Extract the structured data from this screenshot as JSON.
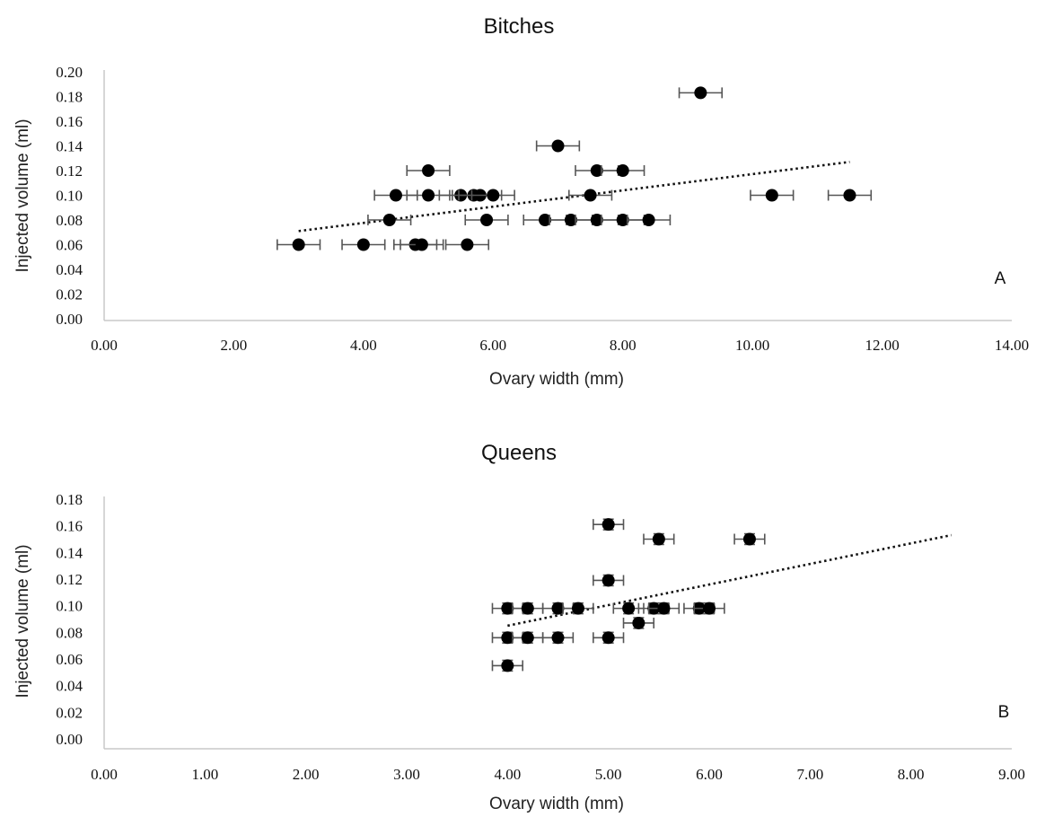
{
  "chart_data": [
    {
      "type": "scatter",
      "title": "Bitches",
      "xlabel": "Ovary width (mm)",
      "ylabel": "Injected volume (ml)",
      "panel_label": "A",
      "xlim": [
        0,
        14
      ],
      "ylim": [
        0,
        0.2
      ],
      "x_ticks": [
        "0.00",
        "2.00",
        "4.00",
        "6.00",
        "8.00",
        "10.00",
        "12.00",
        "14.00"
      ],
      "y_ticks": [
        "0.00",
        "0.02",
        "0.04",
        "0.06",
        "0.08",
        "0.10",
        "0.12",
        "0.14",
        "0.16",
        "0.18",
        "0.20"
      ],
      "x_tick_values": [
        0,
        2,
        4,
        6,
        8,
        10,
        12,
        14
      ],
      "y_tick_values": [
        0,
        0.02,
        0.04,
        0.06,
        0.08,
        0.1,
        0.12,
        0.14,
        0.16,
        0.18,
        0.2
      ],
      "grid": false,
      "error_bars": "horizontal",
      "x_error": 0.33,
      "trendline": {
        "style": "dotted",
        "from": [
          3.0,
          0.071
        ],
        "to": [
          11.5,
          0.127
        ]
      },
      "points": [
        {
          "x": 3.0,
          "y": 0.06
        },
        {
          "x": 4.0,
          "y": 0.06
        },
        {
          "x": 4.8,
          "y": 0.06
        },
        {
          "x": 4.9,
          "y": 0.06
        },
        {
          "x": 5.6,
          "y": 0.06
        },
        {
          "x": 4.4,
          "y": 0.08
        },
        {
          "x": 5.9,
          "y": 0.08
        },
        {
          "x": 6.8,
          "y": 0.08
        },
        {
          "x": 7.2,
          "y": 0.08
        },
        {
          "x": 7.6,
          "y": 0.08
        },
        {
          "x": 8.0,
          "y": 0.08
        },
        {
          "x": 8.4,
          "y": 0.08
        },
        {
          "x": 4.5,
          "y": 0.1
        },
        {
          "x": 5.0,
          "y": 0.1
        },
        {
          "x": 5.5,
          "y": 0.1
        },
        {
          "x": 5.7,
          "y": 0.1
        },
        {
          "x": 5.8,
          "y": 0.1
        },
        {
          "x": 6.0,
          "y": 0.1
        },
        {
          "x": 7.5,
          "y": 0.1
        },
        {
          "x": 10.3,
          "y": 0.1
        },
        {
          "x": 11.5,
          "y": 0.1
        },
        {
          "x": 5.0,
          "y": 0.12
        },
        {
          "x": 7.6,
          "y": 0.12
        },
        {
          "x": 8.0,
          "y": 0.12
        },
        {
          "x": 7.0,
          "y": 0.14
        },
        {
          "x": 9.2,
          "y": 0.183
        }
      ]
    },
    {
      "type": "scatter",
      "title": "Queens",
      "xlabel": "Ovary width (mm)",
      "ylabel": "Injected volume (ml)",
      "panel_label": "B",
      "xlim": [
        0,
        9
      ],
      "ylim": [
        0,
        0.18
      ],
      "x_ticks": [
        "0.00",
        "1.00",
        "2.00",
        "3.00",
        "4.00",
        "5.00",
        "6.00",
        "7.00",
        "8.00",
        "9.00"
      ],
      "y_ticks": [
        "0.00",
        "0.02",
        "0.04",
        "0.06",
        "0.08",
        "0.10",
        "0.12",
        "0.14",
        "0.16",
        "0.18"
      ],
      "x_tick_values": [
        0,
        1,
        2,
        3,
        4,
        5,
        6,
        7,
        8,
        9
      ],
      "y_tick_values": [
        0,
        0.02,
        0.04,
        0.06,
        0.08,
        0.1,
        0.12,
        0.14,
        0.16,
        0.18
      ],
      "grid": false,
      "error_bars": "both",
      "x_error": 0.15,
      "y_error": 0.004,
      "trendline": {
        "style": "dotted",
        "from": [
          4.0,
          0.085
        ],
        "to": [
          8.4,
          0.153
        ]
      },
      "points": [
        {
          "x": 4.0,
          "y": 0.055
        },
        {
          "x": 4.0,
          "y": 0.076
        },
        {
          "x": 4.2,
          "y": 0.076
        },
        {
          "x": 4.5,
          "y": 0.076
        },
        {
          "x": 5.0,
          "y": 0.076
        },
        {
          "x": 5.3,
          "y": 0.087
        },
        {
          "x": 4.0,
          "y": 0.098
        },
        {
          "x": 4.2,
          "y": 0.098
        },
        {
          "x": 4.5,
          "y": 0.098
        },
        {
          "x": 4.7,
          "y": 0.098
        },
        {
          "x": 5.2,
          "y": 0.098
        },
        {
          "x": 5.45,
          "y": 0.098
        },
        {
          "x": 5.55,
          "y": 0.098
        },
        {
          "x": 5.9,
          "y": 0.098
        },
        {
          "x": 6.0,
          "y": 0.098
        },
        {
          "x": 5.0,
          "y": 0.119
        },
        {
          "x": 5.5,
          "y": 0.15
        },
        {
          "x": 6.4,
          "y": 0.15
        },
        {
          "x": 5.0,
          "y": 0.161
        }
      ]
    }
  ]
}
